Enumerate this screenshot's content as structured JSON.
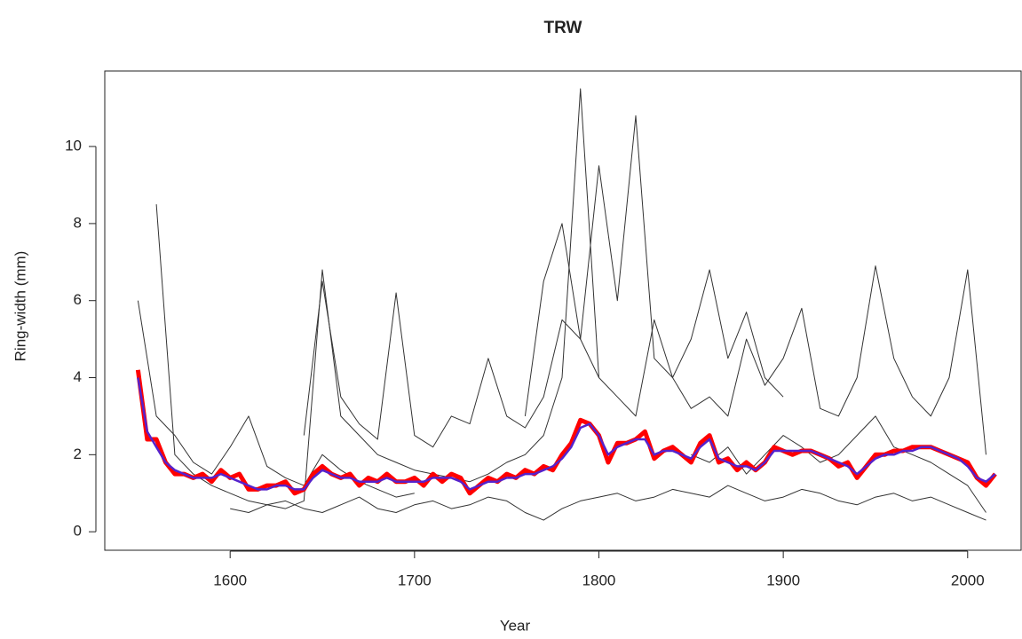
{
  "chart_data": {
    "type": "line",
    "title": "TRW",
    "x_label": "Year",
    "y_label": "Ring-width (mm)",
    "xlim": [
      1532,
      2029
    ],
    "ylim": [
      -0.48,
      11.96
    ],
    "xticks": [
      1600,
      1700,
      1800,
      1900,
      2000
    ],
    "yticks": [
      0,
      2,
      4,
      6,
      8,
      10
    ],
    "series": [
      {
        "color": "#333333",
        "width": 1,
        "x": [
          1550,
          1560,
          1570,
          1580,
          1590,
          1600,
          1610,
          1620,
          1630,
          1640,
          1650,
          1660,
          1670,
          1680,
          1690,
          1700
        ],
        "values": [
          6.0,
          3.0,
          2.5,
          1.8,
          1.5,
          2.2,
          3.0,
          1.7,
          1.4,
          1.2,
          2.0,
          1.6,
          1.3,
          1.1,
          0.9,
          1.0
        ]
      },
      {
        "color": "#333333",
        "width": 1,
        "x": [
          1560,
          1570,
          1580,
          1590,
          1600,
          1610,
          1620,
          1630,
          1640,
          1650,
          1660,
          1670,
          1680,
          1690,
          1700,
          1710,
          1720,
          1730,
          1740,
          1750,
          1760,
          1770,
          1780,
          1790,
          1800
        ],
        "values": [
          8.5,
          2.0,
          1.5,
          1.2,
          1.0,
          0.8,
          0.7,
          0.6,
          0.8,
          6.8,
          3.0,
          2.5,
          2.0,
          1.8,
          1.6,
          1.5,
          1.4,
          1.3,
          1.5,
          1.8,
          2.0,
          2.5,
          4.0,
          11.5,
          4.0
        ]
      },
      {
        "color": "#333333",
        "width": 1,
        "x": [
          1640,
          1650,
          1660,
          1670,
          1680,
          1690,
          1700,
          1710,
          1720,
          1730,
          1740,
          1750,
          1760,
          1770,
          1780,
          1790,
          1800,
          1810,
          1820,
          1830,
          1840,
          1850,
          1860,
          1870,
          1880,
          1890,
          1900
        ],
        "values": [
          2.5,
          6.5,
          3.5,
          2.8,
          2.4,
          6.2,
          2.5,
          2.2,
          3.0,
          2.8,
          4.5,
          3.0,
          2.7,
          3.5,
          5.5,
          5.0,
          9.5,
          6.0,
          10.8,
          4.5,
          4.0,
          5.0,
          6.8,
          4.5,
          5.7,
          4.0,
          3.5
        ]
      },
      {
        "color": "#333333",
        "width": 1,
        "x": [
          1760,
          1770,
          1780,
          1790,
          1800,
          1810,
          1820,
          1830,
          1840,
          1850,
          1860,
          1870,
          1880,
          1890,
          1900,
          1910,
          1920,
          1930,
          1940,
          1950,
          1960,
          1970,
          1980,
          1990,
          2000,
          2010
        ],
        "values": [
          3.0,
          6.5,
          8.0,
          5.0,
          4.0,
          3.5,
          3.0,
          5.5,
          4.0,
          3.2,
          3.5,
          3.0,
          5.0,
          3.8,
          4.5,
          5.8,
          3.2,
          3.0,
          4.0,
          6.9,
          4.5,
          3.5,
          3.0,
          4.0,
          6.8,
          2.0
        ]
      },
      {
        "color": "#333333",
        "width": 1,
        "x": [
          1850,
          1860,
          1870,
          1880,
          1890,
          1900,
          1910,
          1920,
          1930,
          1940,
          1950,
          1960,
          1970,
          1980,
          1990,
          2000,
          2010
        ],
        "values": [
          2.0,
          1.8,
          2.2,
          1.5,
          2.0,
          2.5,
          2.2,
          1.8,
          2.0,
          2.5,
          3.0,
          2.2,
          2.0,
          1.8,
          1.5,
          1.2,
          0.5
        ]
      },
      {
        "color": "#333333",
        "width": 1,
        "x": [
          1600,
          1610,
          1620,
          1630,
          1640,
          1650,
          1660,
          1670,
          1680,
          1690,
          1700,
          1710,
          1720,
          1730,
          1740,
          1750,
          1760,
          1770,
          1780,
          1790,
          1800,
          1810,
          1820,
          1830,
          1840,
          1850,
          1860,
          1870,
          1880,
          1890,
          1900,
          1910,
          1920,
          1930,
          1940,
          1950,
          1960,
          1970,
          1980,
          1990,
          2000,
          2010
        ],
        "values": [
          0.6,
          0.5,
          0.7,
          0.8,
          0.6,
          0.5,
          0.7,
          0.9,
          0.6,
          0.5,
          0.7,
          0.8,
          0.6,
          0.7,
          0.9,
          0.8,
          0.5,
          0.3,
          0.6,
          0.8,
          0.9,
          1.0,
          0.8,
          0.9,
          1.1,
          1.0,
          0.9,
          1.2,
          1.0,
          0.8,
          0.9,
          1.1,
          1.0,
          0.8,
          0.7,
          0.9,
          1.0,
          0.8,
          0.9,
          0.7,
          0.5,
          0.3
        ]
      },
      {
        "color": "#ff0000",
        "width": 5,
        "x": [
          1550,
          1555,
          1560,
          1565,
          1570,
          1575,
          1580,
          1585,
          1590,
          1595,
          1600,
          1605,
          1610,
          1615,
          1620,
          1625,
          1630,
          1635,
          1640,
          1645,
          1650,
          1655,
          1660,
          1665,
          1670,
          1675,
          1680,
          1685,
          1690,
          1695,
          1700,
          1705,
          1710,
          1715,
          1720,
          1725,
          1730,
          1735,
          1740,
          1745,
          1750,
          1755,
          1760,
          1765,
          1770,
          1775,
          1780,
          1785,
          1790,
          1795,
          1800,
          1805,
          1810,
          1815,
          1820,
          1825,
          1830,
          1835,
          1840,
          1845,
          1850,
          1855,
          1860,
          1865,
          1870,
          1875,
          1880,
          1885,
          1890,
          1895,
          1900,
          1905,
          1910,
          1915,
          1920,
          1925,
          1930,
          1935,
          1940,
          1945,
          1950,
          1955,
          1960,
          1965,
          1970,
          1975,
          1980,
          1985,
          1990,
          1995,
          2000,
          2005,
          2010,
          2015
        ],
        "values": [
          4.2,
          2.4,
          2.4,
          1.8,
          1.5,
          1.5,
          1.4,
          1.5,
          1.3,
          1.6,
          1.4,
          1.5,
          1.1,
          1.1,
          1.2,
          1.2,
          1.3,
          1.0,
          1.1,
          1.5,
          1.7,
          1.5,
          1.4,
          1.5,
          1.2,
          1.4,
          1.3,
          1.5,
          1.3,
          1.3,
          1.4,
          1.2,
          1.5,
          1.3,
          1.5,
          1.4,
          1.0,
          1.2,
          1.4,
          1.3,
          1.5,
          1.4,
          1.6,
          1.5,
          1.7,
          1.6,
          2.0,
          2.3,
          2.9,
          2.8,
          2.5,
          1.8,
          2.3,
          2.3,
          2.4,
          2.6,
          1.9,
          2.1,
          2.2,
          2.0,
          1.8,
          2.3,
          2.5,
          1.8,
          1.9,
          1.6,
          1.8,
          1.6,
          1.8,
          2.2,
          2.1,
          2.0,
          2.1,
          2.1,
          2.0,
          1.9,
          1.7,
          1.8,
          1.4,
          1.7,
          2.0,
          2.0,
          2.1,
          2.1,
          2.2,
          2.2,
          2.2,
          2.1,
          2.0,
          1.9,
          1.8,
          1.4,
          1.2,
          1.5
        ]
      },
      {
        "color": "#5522cc",
        "width": 2.5,
        "x": [
          1550,
          1555,
          1560,
          1565,
          1570,
          1575,
          1580,
          1585,
          1590,
          1595,
          1600,
          1605,
          1610,
          1615,
          1620,
          1625,
          1630,
          1635,
          1640,
          1645,
          1650,
          1655,
          1660,
          1665,
          1670,
          1675,
          1680,
          1685,
          1690,
          1695,
          1700,
          1705,
          1710,
          1715,
          1720,
          1725,
          1730,
          1735,
          1740,
          1745,
          1750,
          1755,
          1760,
          1765,
          1770,
          1775,
          1780,
          1785,
          1790,
          1795,
          1800,
          1805,
          1810,
          1815,
          1820,
          1825,
          1830,
          1835,
          1840,
          1845,
          1850,
          1855,
          1860,
          1865,
          1870,
          1875,
          1880,
          1885,
          1890,
          1895,
          1900,
          1905,
          1910,
          1915,
          1920,
          1925,
          1930,
          1935,
          1940,
          1945,
          1950,
          1955,
          1960,
          1965,
          1970,
          1975,
          1980,
          1985,
          1990,
          1995,
          2000,
          2005,
          2010,
          2015
        ],
        "values": [
          4.0,
          2.6,
          2.2,
          1.8,
          1.6,
          1.5,
          1.4,
          1.4,
          1.4,
          1.5,
          1.4,
          1.3,
          1.2,
          1.1,
          1.1,
          1.2,
          1.2,
          1.1,
          1.1,
          1.4,
          1.6,
          1.5,
          1.4,
          1.4,
          1.3,
          1.3,
          1.3,
          1.4,
          1.3,
          1.3,
          1.3,
          1.3,
          1.4,
          1.4,
          1.4,
          1.3,
          1.1,
          1.2,
          1.3,
          1.3,
          1.4,
          1.4,
          1.5,
          1.5,
          1.6,
          1.7,
          1.9,
          2.2,
          2.7,
          2.8,
          2.5,
          2.0,
          2.2,
          2.3,
          2.4,
          2.4,
          2.0,
          2.1,
          2.1,
          2.0,
          1.9,
          2.2,
          2.4,
          1.9,
          1.8,
          1.7,
          1.7,
          1.6,
          1.8,
          2.1,
          2.1,
          2.1,
          2.1,
          2.1,
          2.0,
          1.9,
          1.8,
          1.7,
          1.5,
          1.7,
          1.9,
          2.0,
          2.0,
          2.1,
          2.1,
          2.2,
          2.2,
          2.1,
          2.0,
          1.9,
          1.7,
          1.4,
          1.3,
          1.5
        ]
      }
    ]
  }
}
